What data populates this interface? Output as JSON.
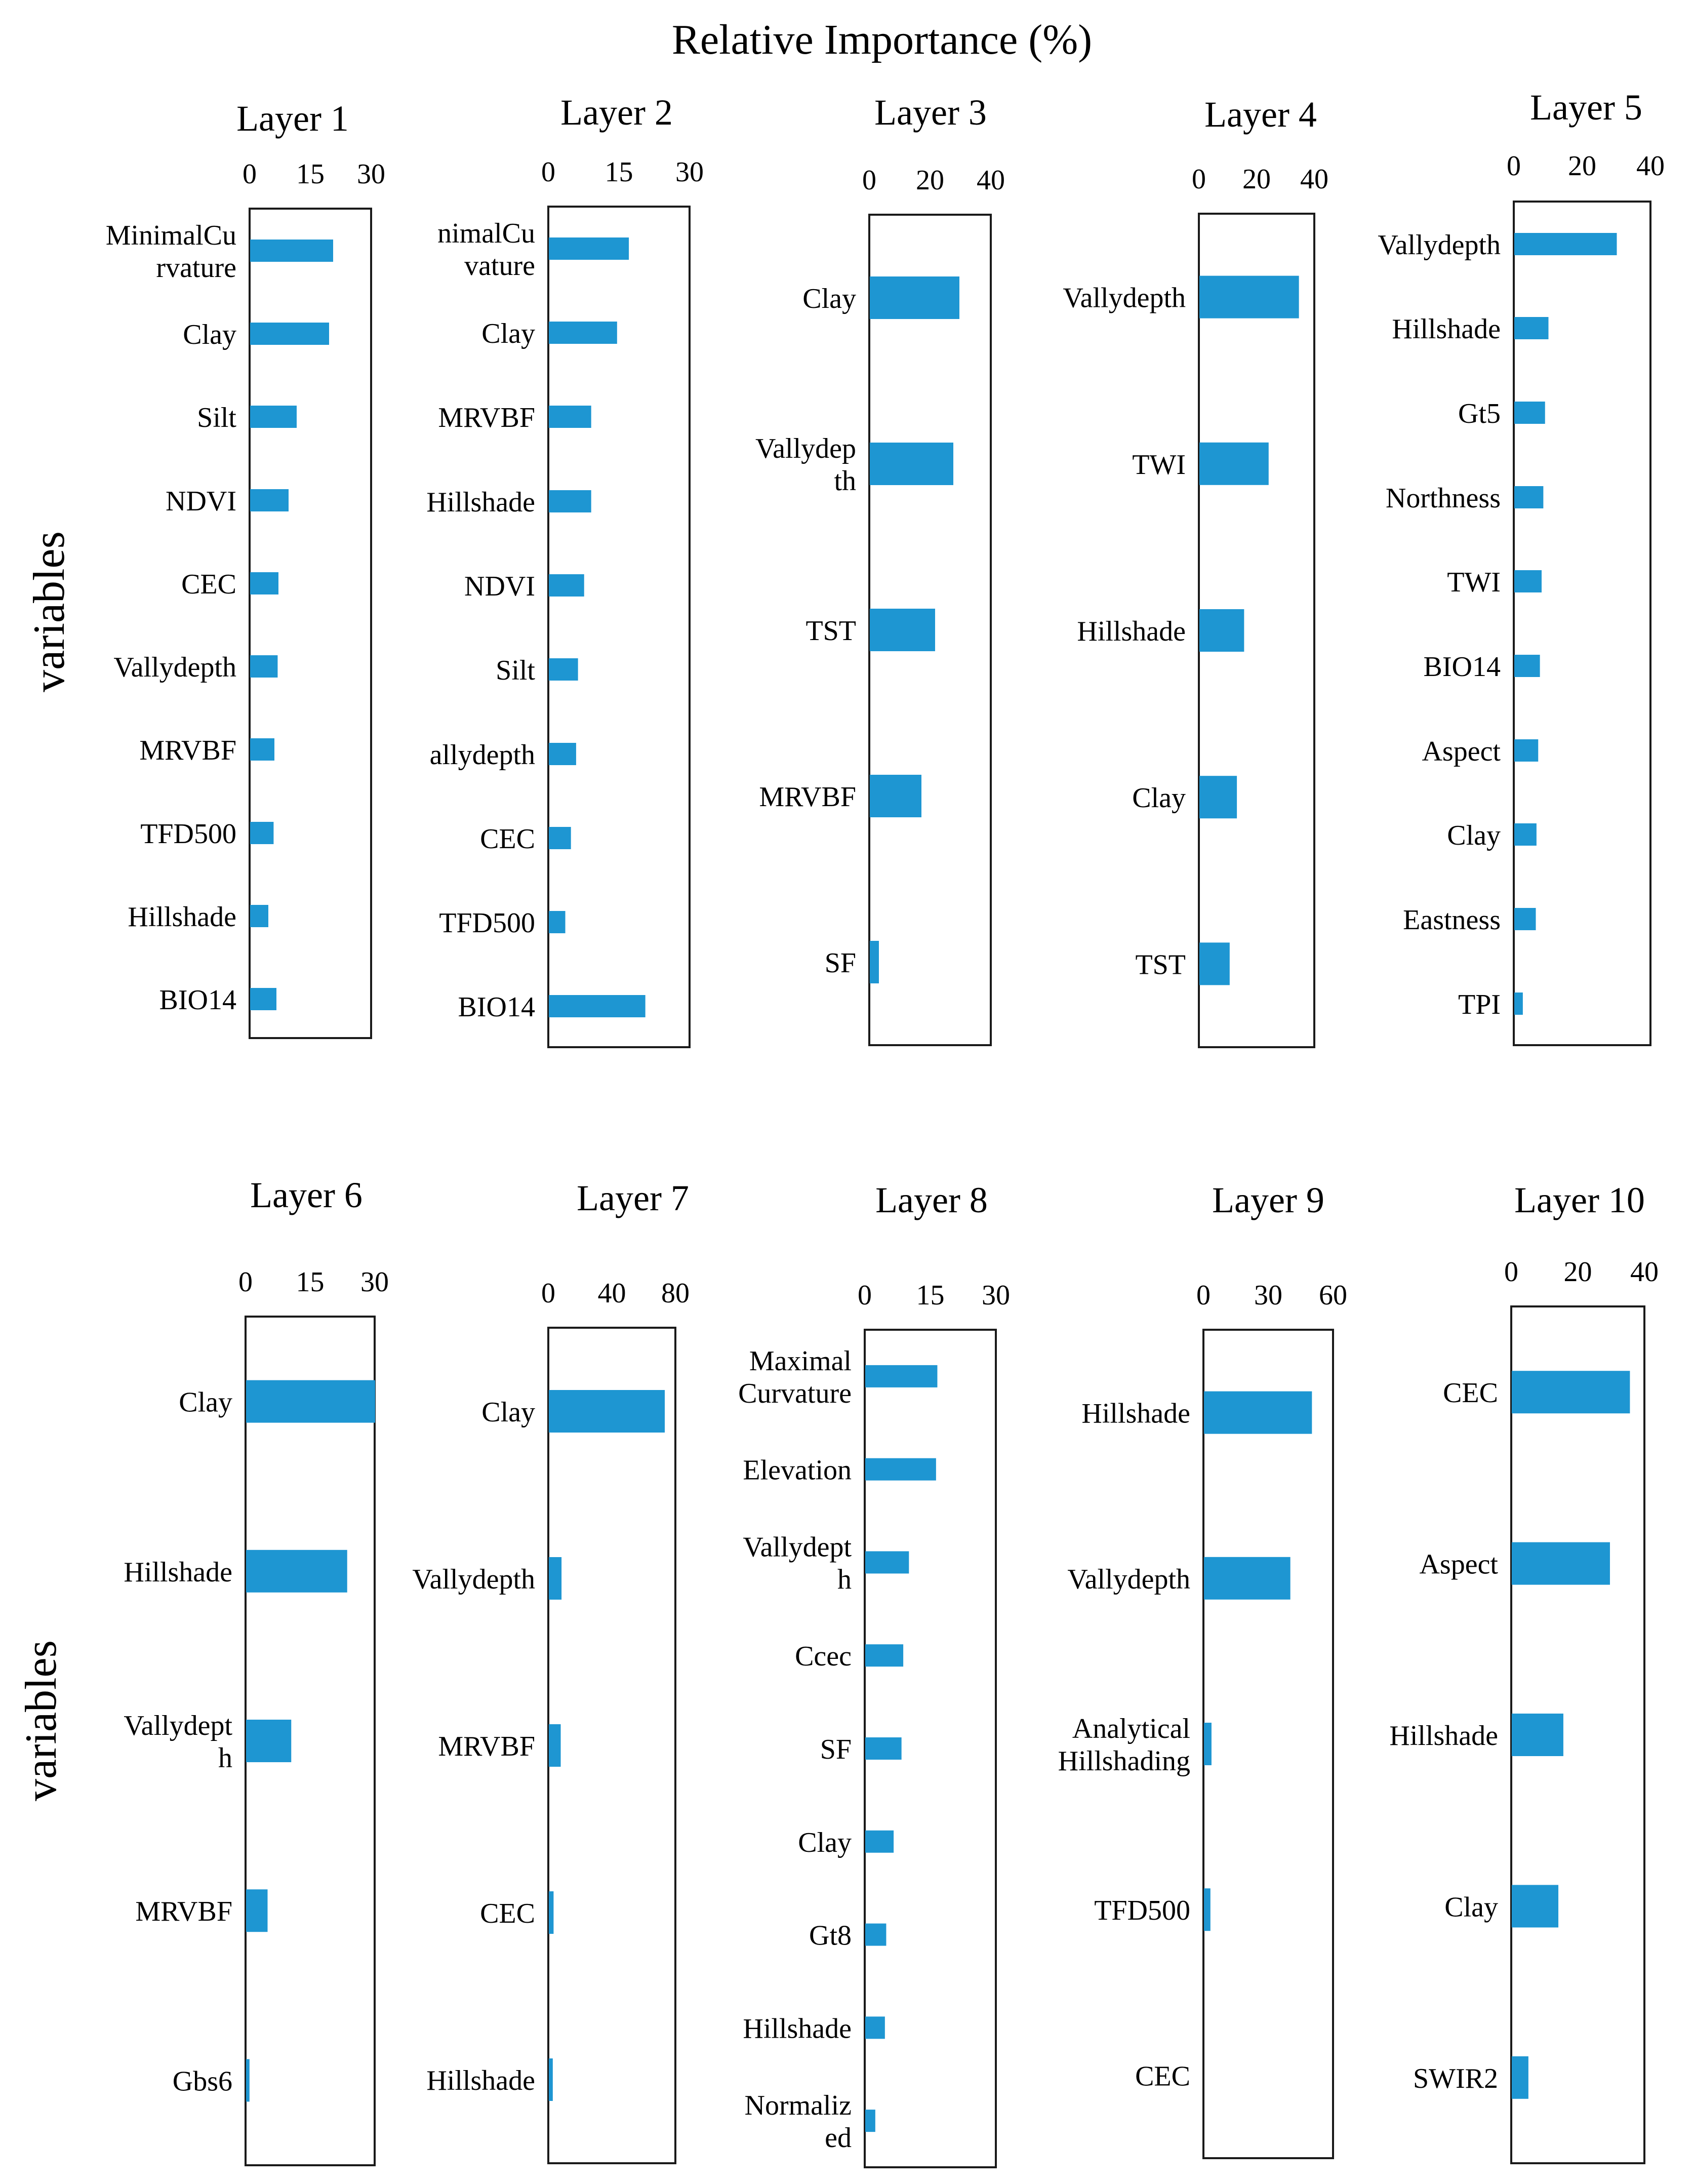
{
  "chart_data": {
    "type": "bar",
    "orientation": "horizontal",
    "title": "Relative Importance (%)",
    "ylabel": "variables",
    "bar_color": "#1E96D2",
    "panels": [
      {
        "title": "Layer 1",
        "xlim": [
          0,
          30
        ],
        "ticks": [
          "0",
          "15",
          "30"
        ],
        "categories": [
          "MinimalCu\nrvature",
          "Clay",
          "Silt",
          "NDVI",
          "CEC",
          "Vallydepth",
          "MRVBF",
          "TFD500",
          "Hillshade",
          "BIO14"
        ],
        "values": [
          20.5,
          19.5,
          11.5,
          9.5,
          7,
          6.8,
          6,
          5.8,
          4.5,
          6.5
        ]
      },
      {
        "title": "Layer 2",
        "xlim": [
          0,
          30
        ],
        "ticks": [
          "0",
          "15",
          "30"
        ],
        "categories": [
          "nimalCu\nvature",
          "Clay",
          "MRVBF",
          "Hillshade",
          "NDVI",
          "Silt",
          "allydepth",
          "CEC",
          "TFD500",
          "BIO14"
        ],
        "values": [
          17,
          14.5,
          9,
          9,
          7.5,
          6.2,
          5.8,
          4.7,
          3.5,
          20.5
        ]
      },
      {
        "title": "Layer 3",
        "xlim": [
          0,
          40
        ],
        "ticks": [
          "0",
          "20",
          "40"
        ],
        "categories": [
          "Clay",
          "Vallydep\nth",
          "TST",
          "MRVBF",
          "SF"
        ],
        "values": [
          29.5,
          27.5,
          21.5,
          17,
          3
        ]
      },
      {
        "title": "Layer 4",
        "xlim": [
          0,
          40
        ],
        "ticks": [
          "0",
          "20",
          "40"
        ],
        "categories": [
          "Vallydepth",
          "TWI",
          "Hillshade",
          "Clay",
          "TST"
        ],
        "values": [
          34.5,
          24,
          15.5,
          13,
          10.5
        ]
      },
      {
        "title": "Layer 5",
        "xlim": [
          0,
          40
        ],
        "ticks": [
          "0",
          "20",
          "40"
        ],
        "categories": [
          "Vallydepth",
          "Hillshade",
          "Gt5",
          "Northness",
          "TWI",
          "BIO14",
          "Aspect",
          "Clay",
          "Eastness",
          "TPI"
        ],
        "values": [
          30,
          10,
          9,
          8.5,
          8,
          7.5,
          7,
          6.5,
          6.3,
          2.5
        ]
      },
      {
        "title": "Layer 6",
        "xlim": [
          0,
          30
        ],
        "ticks": [
          "0",
          "15",
          "30"
        ],
        "categories": [
          "Clay",
          "Hillshade",
          "Vallydept\nh",
          "MRVBF",
          "Gbs6"
        ],
        "values": [
          30,
          23.5,
          10.5,
          5,
          0.8
        ]
      },
      {
        "title": "Layer 7",
        "xlim": [
          0,
          80
        ],
        "ticks": [
          "0",
          "40",
          "80"
        ],
        "categories": [
          "Clay",
          "Vallydepth",
          "MRVBF",
          "CEC",
          "Hillshade"
        ],
        "values": [
          73,
          8,
          7.5,
          3,
          2.5
        ]
      },
      {
        "title": "Layer 8",
        "xlim": [
          0,
          30
        ],
        "ticks": [
          "0",
          "15",
          "30"
        ],
        "categories": [
          "Maximal\nCurvature",
          "Elevation",
          "Vallydept\nh",
          "Ccec",
          "SF",
          "Clay",
          "Gt8",
          "Hillshade",
          "Normaliz\ned"
        ],
        "values": [
          16.5,
          16.2,
          10,
          8.7,
          8.3,
          6.5,
          4.8,
          4.5,
          2.3
        ]
      },
      {
        "title": "Layer 9",
        "xlim": [
          0,
          60
        ],
        "ticks": [
          "0",
          "30",
          "60"
        ],
        "categories": [
          "Hillshade",
          "Vallydepth",
          "Analytical\nHillshading",
          "TFD500",
          "CEC"
        ],
        "values": [
          50,
          40,
          3.5,
          3,
          0
        ]
      },
      {
        "title": "Layer 10",
        "xlim": [
          0,
          40
        ],
        "ticks": [
          "0",
          "20",
          "40"
        ],
        "categories": [
          "CEC",
          "Aspect",
          "Hillshade",
          "Clay",
          "SWIR2"
        ],
        "values": [
          35.5,
          29.5,
          15.5,
          14,
          5
        ]
      }
    ]
  }
}
